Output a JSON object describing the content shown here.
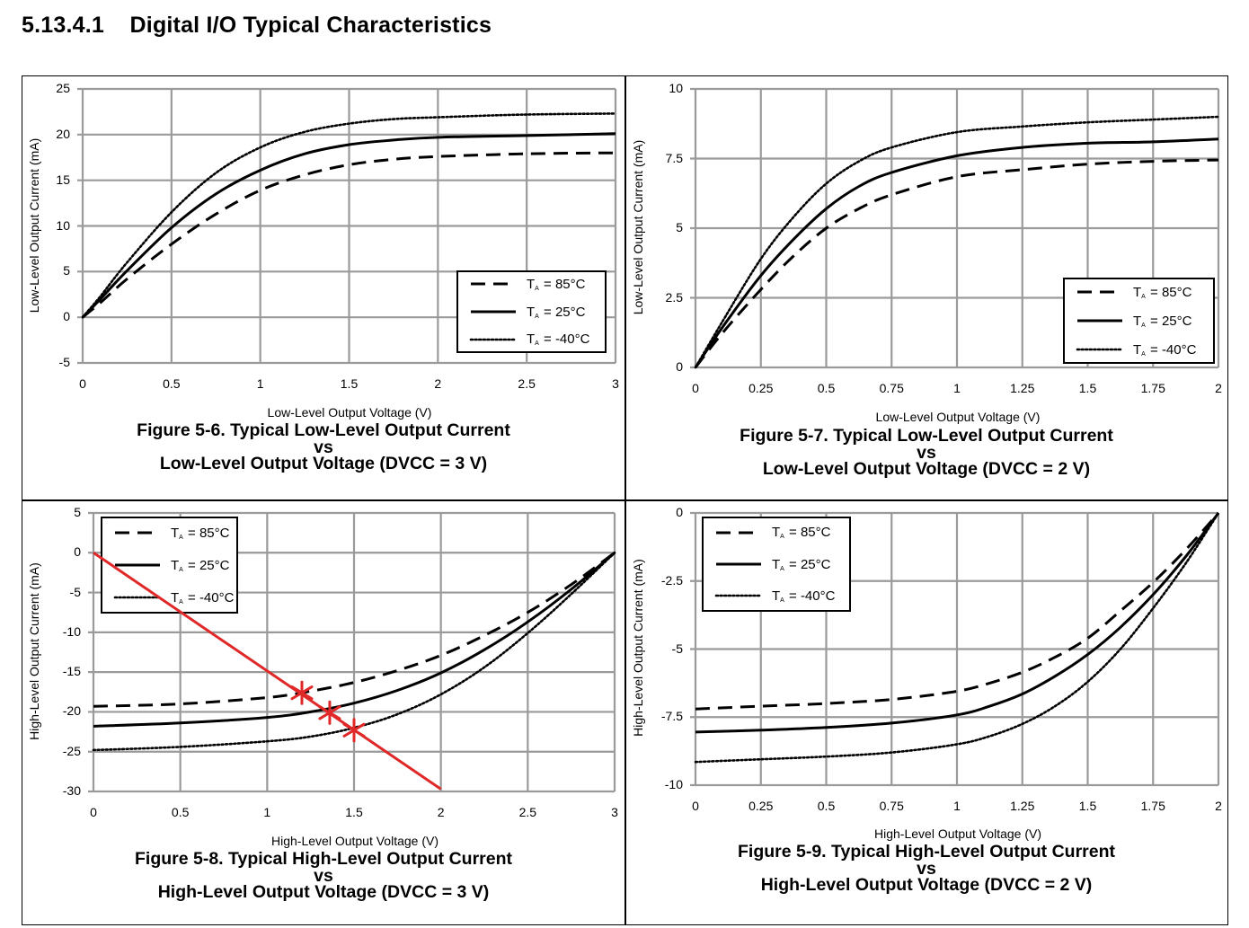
{
  "page": {
    "section_title": "5.13.4.1    Digital I/O Typical Characteristics"
  },
  "colors": {
    "grid": "#9a9a9a",
    "curve": "#000000",
    "annotation": "#e02828",
    "frame": "#000000"
  },
  "chart_data": [
    {
      "id": "fig-5-6",
      "type": "line",
      "title": "Figure 5-6. Typical Low-Level Output Current vs Low-Level Output Voltage (DVCC = 3 V)",
      "caption_line1": "Figure 5-6. Typical Low-Level Output Current",
      "caption_vs": "vs",
      "caption_line2": "Low-Level Output Voltage (DVCC = 3 V)",
      "xlabel": "Low-Level Output Voltage (V)",
      "ylabel": "Low-Level Output Current (mA)",
      "xlim": [
        0,
        3
      ],
      "ylim": [
        -5,
        25
      ],
      "xticks": [
        "0",
        "0.5",
        "1",
        "1.5",
        "2",
        "2.5",
        "3"
      ],
      "yticks": [
        "25",
        "20",
        "15",
        "10",
        "5",
        "0",
        "-5"
      ],
      "grid": true,
      "legend_position": "lower-right",
      "legend": [
        "T_A = 85°C",
        "T_A = 25°C",
        "T_A = -40°C"
      ],
      "series": [
        {
          "name": "TA = 85°C",
          "style": "dashed",
          "x": [
            0,
            0.1,
            0.25,
            0.5,
            0.75,
            1.0,
            1.25,
            1.5,
            1.75,
            2.0,
            2.5,
            3.0
          ],
          "y": [
            0,
            1.6,
            4.2,
            8.0,
            11.3,
            13.9,
            15.6,
            16.7,
            17.3,
            17.6,
            17.9,
            18.0
          ]
        },
        {
          "name": "TA = 25°C",
          "style": "solid",
          "x": [
            0,
            0.1,
            0.25,
            0.5,
            0.75,
            1.0,
            1.25,
            1.5,
            1.75,
            2.0,
            2.5,
            3.0
          ],
          "y": [
            0,
            2.0,
            5.1,
            9.8,
            13.5,
            16.1,
            17.9,
            18.9,
            19.4,
            19.7,
            19.9,
            20.1
          ]
        },
        {
          "name": "TA = -40°C",
          "style": "dotted",
          "x": [
            0,
            0.1,
            0.25,
            0.5,
            0.75,
            1.0,
            1.25,
            1.5,
            1.75,
            2.0,
            2.5,
            3.0
          ],
          "y": [
            0,
            2.3,
            6.0,
            11.5,
            15.8,
            18.6,
            20.3,
            21.2,
            21.7,
            21.9,
            22.2,
            22.3
          ]
        }
      ],
      "annotations": []
    },
    {
      "id": "fig-5-7",
      "type": "line",
      "title": "Figure 5-7. Typical Low-Level Output Current vs Low-Level Output Voltage (DVCC = 2 V)",
      "caption_line1": "Figure 5-7. Typical Low-Level Output Current",
      "caption_vs": "vs",
      "caption_line2": "Low-Level Output Voltage (DVCC = 2 V)",
      "xlabel": "Low-Level Output Voltage (V)",
      "ylabel": "Low-Level Output Current (mA)",
      "xlim": [
        0,
        2
      ],
      "ylim": [
        0,
        10
      ],
      "xticks": [
        "0",
        "0.25",
        "0.5",
        "0.75",
        "1",
        "1.25",
        "1.5",
        "1.75",
        "2"
      ],
      "yticks": [
        "10",
        "7.5",
        "5",
        "2.5",
        "0"
      ],
      "grid": true,
      "legend_position": "lower-right",
      "legend": [
        "T_A = 85°C",
        "T_A = 25°C",
        "T_A = -40°C"
      ],
      "series": [
        {
          "name": "TA = 85°C",
          "style": "dashed",
          "x": [
            0,
            0.1,
            0.25,
            0.375,
            0.5,
            0.625,
            0.75,
            1.0,
            1.25,
            1.5,
            1.75,
            2.0
          ],
          "y": [
            0,
            1.2,
            2.8,
            4.0,
            5.0,
            5.7,
            6.2,
            6.85,
            7.1,
            7.3,
            7.4,
            7.45
          ]
        },
        {
          "name": "TA = 25°C",
          "style": "solid",
          "x": [
            0,
            0.1,
            0.25,
            0.375,
            0.5,
            0.625,
            0.75,
            1.0,
            1.25,
            1.5,
            1.75,
            2.0
          ],
          "y": [
            0,
            1.4,
            3.3,
            4.6,
            5.7,
            6.5,
            7.0,
            7.6,
            7.9,
            8.05,
            8.1,
            8.2
          ]
        },
        {
          "name": "TA = -40°C",
          "style": "dotted",
          "x": [
            0,
            0.1,
            0.25,
            0.375,
            0.5,
            0.625,
            0.75,
            1.0,
            1.25,
            1.5,
            1.75,
            2.0
          ],
          "y": [
            0,
            1.6,
            3.9,
            5.4,
            6.6,
            7.4,
            7.9,
            8.45,
            8.65,
            8.8,
            8.9,
            9.0
          ]
        }
      ],
      "annotations": []
    },
    {
      "id": "fig-5-8",
      "type": "line",
      "title": "Figure 5-8. Typical High-Level Output Current vs High-Level Output Voltage (DVCC = 3 V)",
      "caption_line1": "Figure 5-8. Typical High-Level Output Current",
      "caption_vs": "vs",
      "caption_line2": "High-Level Output Voltage (DVCC = 3 V)",
      "xlabel": "High-Level Output Voltage (V)",
      "ylabel": "High-Level Output Current (mA)",
      "xlim": [
        0,
        3
      ],
      "ylim": [
        -30,
        5
      ],
      "xticks": [
        "0",
        "0.5",
        "1",
        "1.5",
        "2",
        "2.5",
        "3"
      ],
      "yticks": [
        "5",
        "0",
        "-5",
        "-10",
        "-15",
        "-20",
        "-25",
        "-30"
      ],
      "grid": true,
      "legend_position": "upper-left",
      "legend": [
        "T_A = 85°C",
        "T_A = 25°C",
        "T_A = -40°C"
      ],
      "series": [
        {
          "name": "TA = 85°C",
          "style": "dashed",
          "x": [
            0,
            0.5,
            1.0,
            1.25,
            1.5,
            1.75,
            2.0,
            2.25,
            2.5,
            2.75,
            3.0
          ],
          "y": [
            -19.3,
            -19.0,
            -18.2,
            -17.4,
            -16.3,
            -14.8,
            -12.9,
            -10.4,
            -7.5,
            -4.0,
            0
          ]
        },
        {
          "name": "TA = 25°C",
          "style": "solid",
          "x": [
            0,
            0.5,
            1.0,
            1.25,
            1.5,
            1.75,
            2.0,
            2.25,
            2.5,
            2.75,
            3.0
          ],
          "y": [
            -21.8,
            -21.4,
            -20.7,
            -20.0,
            -18.9,
            -17.3,
            -15.1,
            -12.2,
            -8.7,
            -4.6,
            0
          ]
        },
        {
          "name": "TA = -40°C",
          "style": "dotted",
          "x": [
            0,
            0.5,
            1.0,
            1.25,
            1.5,
            1.75,
            2.0,
            2.25,
            2.5,
            2.75,
            3.0
          ],
          "y": [
            -24.8,
            -24.4,
            -23.7,
            -23.1,
            -22.0,
            -20.3,
            -17.8,
            -14.4,
            -10.1,
            -5.2,
            0
          ]
        }
      ],
      "annotations": [
        {
          "type": "line",
          "color": "#e02828",
          "x": [
            0,
            2.0
          ],
          "y": [
            0,
            -29.7
          ],
          "label": "load line"
        },
        {
          "type": "marker",
          "color": "#e02828",
          "x": 1.2,
          "y": -17.6,
          "symbol": "asterisk"
        },
        {
          "type": "marker",
          "color": "#e02828",
          "x": 1.36,
          "y": -20.1,
          "symbol": "asterisk"
        },
        {
          "type": "marker",
          "color": "#e02828",
          "x": 1.5,
          "y": -22.3,
          "symbol": "asterisk"
        }
      ]
    },
    {
      "id": "fig-5-9",
      "type": "line",
      "title": "Figure 5-9. Typical High-Level Output Current vs High-Level Output Voltage (DVCC = 2 V)",
      "caption_line1": "Figure 5-9. Typical High-Level Output Current",
      "caption_vs": "vs",
      "caption_line2": "High-Level Output Voltage (DVCC = 2 V)",
      "xlabel": "High-Level Output Voltage (V)",
      "ylabel": "High-Level Output Current (mA)",
      "xlim": [
        0,
        2
      ],
      "ylim": [
        -10,
        0
      ],
      "xticks": [
        "0",
        "0.25",
        "0.5",
        "0.75",
        "1",
        "1.25",
        "1.5",
        "1.75",
        "2"
      ],
      "yticks": [
        "0",
        "-2.5",
        "-5",
        "-7.5",
        "-10"
      ],
      "grid": true,
      "legend_position": "upper-left",
      "legend": [
        "T_A = 85°C",
        "T_A = 25°C",
        "T_A = -40°C"
      ],
      "series": [
        {
          "name": "TA = 85°C",
          "style": "dashed",
          "x": [
            0,
            0.25,
            0.5,
            0.75,
            1.0,
            1.125,
            1.25,
            1.375,
            1.5,
            1.625,
            1.75,
            1.875,
            2.0
          ],
          "y": [
            -7.2,
            -7.1,
            -7.0,
            -6.85,
            -6.55,
            -6.25,
            -5.85,
            -5.3,
            -4.6,
            -3.6,
            -2.55,
            -1.35,
            0
          ]
        },
        {
          "name": "TA = 25°C",
          "style": "solid",
          "x": [
            0,
            0.25,
            0.5,
            0.75,
            1.0,
            1.125,
            1.25,
            1.375,
            1.5,
            1.625,
            1.75,
            1.875,
            2.0
          ],
          "y": [
            -8.05,
            -7.98,
            -7.88,
            -7.72,
            -7.42,
            -7.1,
            -6.65,
            -6.0,
            -5.2,
            -4.2,
            -3.0,
            -1.6,
            0
          ]
        },
        {
          "name": "TA = -40°C",
          "style": "dotted",
          "x": [
            0,
            0.25,
            0.5,
            0.75,
            1.0,
            1.125,
            1.25,
            1.375,
            1.5,
            1.625,
            1.75,
            1.875,
            2.0
          ],
          "y": [
            -9.15,
            -9.05,
            -8.95,
            -8.8,
            -8.5,
            -8.2,
            -7.75,
            -7.1,
            -6.2,
            -5.0,
            -3.5,
            -1.85,
            0
          ]
        }
      ],
      "annotations": []
    }
  ]
}
